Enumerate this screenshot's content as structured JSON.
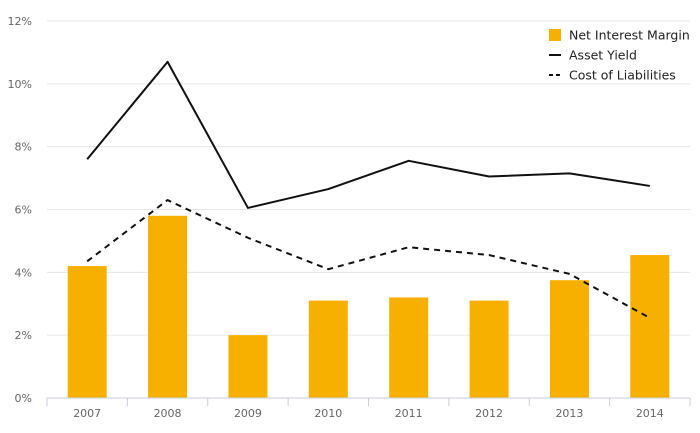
{
  "colors": {
    "bar": "#F8B000",
    "line_solid": "#111111",
    "line_dashed": "#111111",
    "grid": "#e6e6e6",
    "axis": "#c8cbe0"
  },
  "chart_data": {
    "type": "bar",
    "title": "",
    "xlabel": "",
    "ylabel": "",
    "categories": [
      "2007",
      "2008",
      "2009",
      "2010",
      "2011",
      "2012",
      "2013",
      "2014"
    ],
    "ylim": [
      0,
      12
    ],
    "yticks": [
      "0%",
      "2%",
      "4%",
      "6%",
      "8%",
      "10%",
      "12%"
    ],
    "ytick_values": [
      0,
      2,
      4,
      6,
      8,
      10,
      12
    ],
    "grid": true,
    "legend_position": "top-right",
    "series": [
      {
        "name": "Net Interest Margin",
        "type": "bar",
        "values": [
          4.2,
          5.8,
          2.0,
          3.1,
          3.2,
          3.1,
          3.75,
          4.55
        ]
      },
      {
        "name": "Asset Yield",
        "type": "line",
        "style": "solid",
        "values": [
          7.6,
          10.7,
          6.05,
          6.65,
          7.55,
          7.05,
          7.15,
          6.75
        ]
      },
      {
        "name": "Cost of Liabilities",
        "type": "line",
        "style": "dashed",
        "values": [
          4.35,
          6.3,
          5.1,
          4.1,
          4.8,
          4.55,
          3.95,
          2.55
        ]
      }
    ]
  }
}
